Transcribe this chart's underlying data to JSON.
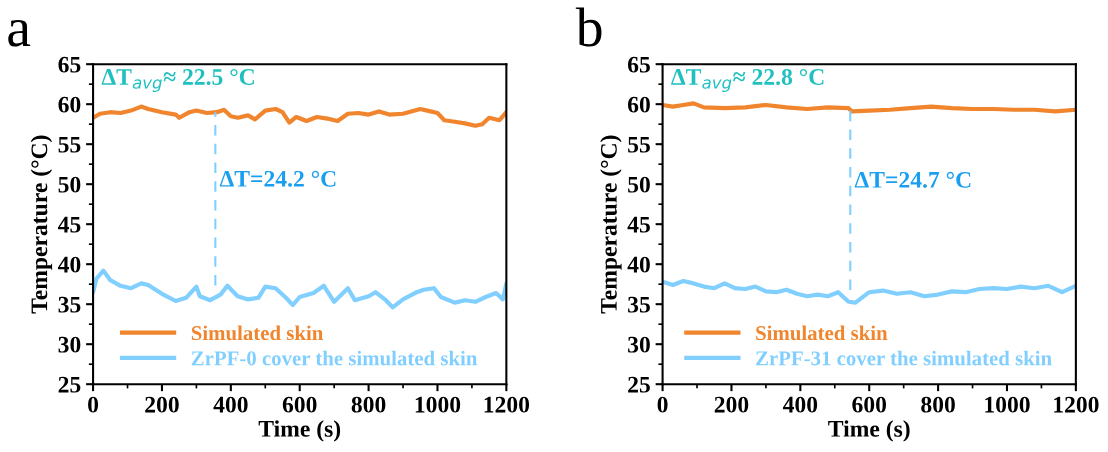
{
  "chart_data": [
    {
      "type": "line",
      "title": "a",
      "xlabel": "Time (s)",
      "ylabel": "Temperature (°C)",
      "xlim": [
        0,
        1200
      ],
      "xticks": [
        0,
        200,
        400,
        600,
        800,
        1000,
        1200
      ],
      "ylim": [
        25,
        65
      ],
      "yticks": [
        25,
        30,
        35,
        40,
        45,
        50,
        55,
        60,
        65
      ],
      "legend": "bottom",
      "grid": false,
      "series": [
        {
          "name": "Simulated skin",
          "color": "#f0852d",
          "x": [
            0,
            20,
            50,
            80,
            110,
            140,
            160,
            200,
            240,
            250,
            280,
            300,
            330,
            360,
            380,
            400,
            420,
            450,
            470,
            500,
            530,
            550,
            570,
            590,
            620,
            650,
            680,
            710,
            740,
            770,
            800,
            830,
            860,
            900,
            950,
            980,
            1000,
            1020,
            1050,
            1080,
            1110,
            1130,
            1150,
            1180,
            1200
          ],
          "values": [
            58.3,
            58.8,
            59.0,
            58.9,
            59.2,
            59.7,
            59.4,
            59.0,
            58.7,
            58.3,
            59.0,
            59.2,
            58.9,
            59.0,
            59.3,
            58.5,
            58.3,
            58.6,
            58.1,
            59.2,
            59.4,
            59.0,
            57.7,
            58.4,
            57.9,
            58.4,
            58.2,
            57.9,
            58.8,
            58.9,
            58.7,
            59.1,
            58.7,
            58.8,
            59.4,
            59.1,
            58.9,
            58.0,
            57.8,
            57.6,
            57.3,
            57.5,
            58.3,
            58.0,
            59.0
          ]
        },
        {
          "name": "ZrPF-0 cover the simulated skin",
          "color": "#80cfff",
          "x": [
            0,
            10,
            30,
            50,
            80,
            110,
            140,
            160,
            200,
            240,
            270,
            300,
            310,
            340,
            370,
            390,
            420,
            450,
            480,
            500,
            530,
            560,
            580,
            600,
            640,
            670,
            700,
            740,
            760,
            800,
            820,
            850,
            870,
            900,
            940,
            960,
            990,
            1010,
            1050,
            1080,
            1110,
            1140,
            1170,
            1190,
            1200
          ],
          "values": [
            36.5,
            38.2,
            39.2,
            38.0,
            37.3,
            37.0,
            37.6,
            37.4,
            36.3,
            35.4,
            35.8,
            37.2,
            36.0,
            35.5,
            36.2,
            37.3,
            36.0,
            35.6,
            35.8,
            37.2,
            37.0,
            35.8,
            34.9,
            35.9,
            36.4,
            37.3,
            35.3,
            37.0,
            35.5,
            36.0,
            36.5,
            35.5,
            34.6,
            35.6,
            36.5,
            36.8,
            37.0,
            35.9,
            35.2,
            35.5,
            35.3,
            35.9,
            36.4,
            35.6,
            37.6
          ]
        }
      ],
      "ref_lines": [
        {
          "axis": "x",
          "value": 355,
          "color": "#80cfff",
          "line_style": "dashed"
        }
      ],
      "annotations": [
        "ΔT$_{avg}$≈ 22.5 °C",
        "ΔT=24.2 °C"
      ]
    },
    {
      "type": "line",
      "title": "b",
      "xlabel": "Time (s)",
      "ylabel": "Temperature (°C)",
      "xlim": [
        0,
        1200
      ],
      "xticks": [
        0,
        200,
        400,
        600,
        800,
        1000,
        1200
      ],
      "ylim": [
        25,
        65
      ],
      "yticks": [
        25,
        30,
        35,
        40,
        45,
        50,
        55,
        60,
        65
      ],
      "legend": "bottom",
      "grid": false,
      "series": [
        {
          "name": "Simulated skin",
          "color": "#f0852d",
          "x": [
            0,
            30,
            60,
            90,
            120,
            180,
            240,
            300,
            360,
            420,
            480,
            540,
            550,
            600,
            660,
            720,
            780,
            840,
            900,
            960,
            1020,
            1080,
            1140,
            1200
          ],
          "values": [
            59.9,
            59.7,
            59.9,
            60.1,
            59.6,
            59.5,
            59.6,
            59.9,
            59.6,
            59.4,
            59.6,
            59.5,
            59.1,
            59.2,
            59.3,
            59.5,
            59.7,
            59.5,
            59.4,
            59.4,
            59.3,
            59.3,
            59.1,
            59.3
          ]
        },
        {
          "name": "ZrPF-31 cover the simulated skin",
          "color": "#80cfff",
          "x": [
            0,
            30,
            60,
            90,
            120,
            150,
            180,
            210,
            240,
            270,
            300,
            330,
            360,
            390,
            420,
            450,
            480,
            510,
            540,
            560,
            600,
            640,
            680,
            720,
            760,
            800,
            840,
            880,
            920,
            960,
            1000,
            1040,
            1080,
            1120,
            1160,
            1200
          ],
          "values": [
            37.8,
            37.4,
            37.9,
            37.6,
            37.2,
            37.0,
            37.6,
            37.0,
            36.9,
            37.2,
            36.6,
            36.5,
            36.8,
            36.3,
            36.0,
            36.2,
            36.0,
            36.5,
            35.3,
            35.2,
            36.5,
            36.7,
            36.3,
            36.5,
            36.0,
            36.2,
            36.6,
            36.5,
            36.9,
            37.0,
            36.9,
            37.2,
            37.0,
            37.3,
            36.5,
            37.3
          ]
        }
      ],
      "ref_lines": [
        {
          "axis": "x",
          "value": 545,
          "color": "#80cfff",
          "line_style": "dashed"
        }
      ],
      "annotations": [
        "ΔT$_{avg}$≈ 22.8 °C",
        "ΔT=24.7 °C"
      ]
    }
  ]
}
